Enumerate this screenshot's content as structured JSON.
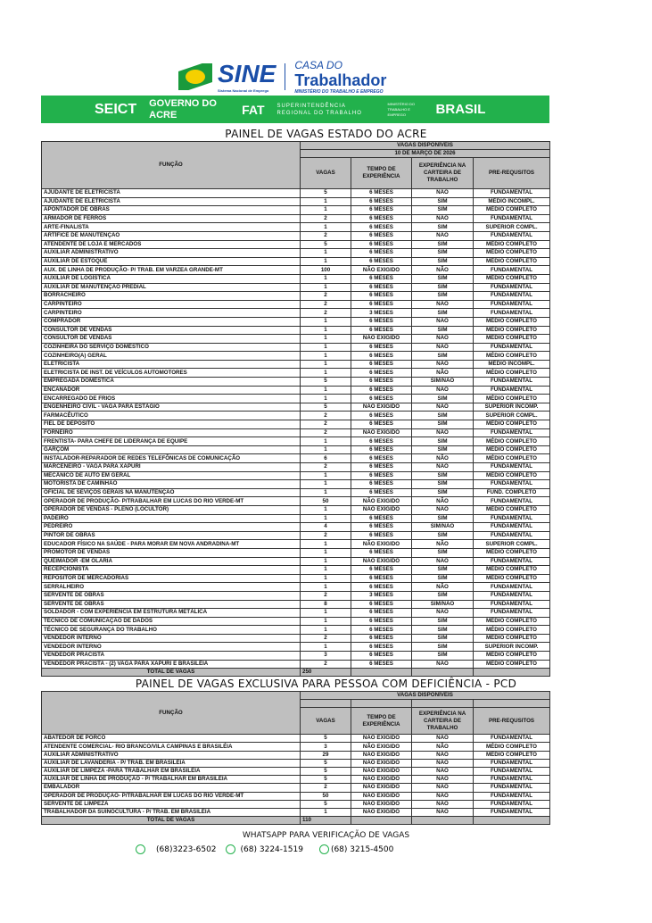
{
  "header": {
    "sine": "SINE",
    "sine_sub": "Sistema Nacional de Emprego",
    "casa": "CASA DO",
    "trabalhador": "Trabalhador",
    "ministerio": "MINISTÉRIO DO TRABALHO E EMPREGO",
    "banner": [
      "SEICT",
      "GOVERNO DO ACRE",
      "FAT",
      "SUPERINTENDÊNCIA REGIONAL DO TRABALHO",
      "MINISTÉRIO DO TRABALHO E EMPREGO",
      "BRASIL"
    ]
  },
  "panel1": {
    "title": "PAINEL DE VAGAS ESTADO DO ACRE",
    "vagas_disponiveis": "VAGAS DISPONÍVEIS",
    "date": "10 DE MARÇO DE 2026",
    "columns": [
      "FUNÇÃO",
      "VAGAS",
      "TEMPO DE EXPERIÊNCIA",
      "EXPERIÊNCIA NA CARTEIRA DE TRABALHO",
      "PRE-REQUSITOS"
    ],
    "rows": [
      [
        "AJUDANTE DE ELETRICISTA",
        "5",
        "6 MESES",
        "NÃO",
        "FUNDAMENTAL"
      ],
      [
        "AJUDANTE DE ELETRICISTA",
        "1",
        "6 MESES",
        "SIM",
        "MÉDIO INCOMPL."
      ],
      [
        "APONTADOR DE OBRAS",
        "1",
        "6 MESES",
        "SIM",
        "MÉDIO COMPLETO"
      ],
      [
        "ARMADOR DE FERROS",
        "2",
        "6 MESES",
        "NÃO",
        "FUNDAMENTAL"
      ],
      [
        "ARTE-FINALISTA",
        "1",
        "6 MESES",
        "SIM",
        "SUPERIOR COMPL."
      ],
      [
        "ARTÍFICE DE MANUTENÇÃO",
        "2",
        "6 MESES",
        "NÃO",
        "FUNDAMENTAL"
      ],
      [
        "ATENDENTE DE LOJA E MERCADOS",
        "5",
        "6 MESES",
        "SIM",
        "MÉDIO COMPLETO"
      ],
      [
        "AUXILIAR ADMINISTRATIVO",
        "1",
        "6 MESES",
        "SIM",
        "MÉDIO COMPLETO"
      ],
      [
        "AUXILIAR DE ESTOQUE",
        "1",
        "6 MESES",
        "SIM",
        "MÉDIO COMPLETO"
      ],
      [
        "AUX. DE LINHA DE PRODUÇÃO- P/ TRAB. EM VARZEA GRANDE-MT",
        "100",
        "NÃO EXIGIDO",
        "NÃO",
        "FUNDAMENTAL"
      ],
      [
        "AUXILIAR DE LOGÍSTICA",
        "1",
        "6 MESES",
        "SIM",
        "MÉDIO COMPLETO"
      ],
      [
        "AUXILIAR DE MANUTENÇÃO PREDIAL",
        "1",
        "6 MESES",
        "SIM",
        "FUNDAMENTAL"
      ],
      [
        "BORRACHEIRO",
        "2",
        "6 MESES",
        "SIM",
        "FUNDAMENTAL"
      ],
      [
        "CARPINTEIRO",
        "2",
        "6 MESES",
        "NÃO",
        "FUNDAMENTAL"
      ],
      [
        "CARPINTEIRO",
        "2",
        "3 MESES",
        "SIM",
        "FUNDAMENTAL"
      ],
      [
        "COMPRADOR",
        "1",
        "6 MESES",
        "NÃO",
        "MÉDIO COMPLETO"
      ],
      [
        "CONSULTOR DE VENDAS",
        "1",
        "6 MESES",
        "SIM",
        "MÉDIO COMPLETO"
      ],
      [
        "CONSULTOR DE VENDAS",
        "1",
        "NÃO EXIGIDO",
        "NÃO",
        "MÉDIO COMPLETO"
      ],
      [
        "COZINHEIRA DO SERVIÇO DOMÉSTICO",
        "1",
        "6 MESES",
        "NÃO",
        "FUNDAMENTAL"
      ],
      [
        "COZINHEIRO(A) GERAL",
        "1",
        "6 MESES",
        "SIM",
        "MÉDIO COMPLETO"
      ],
      [
        "ELETRICISTA",
        "1",
        "6 MESES",
        "NÃO",
        "MÉDIO INCOMPL."
      ],
      [
        "ELETRICISTA DE INST. DE VEÍCULOS AUTOMOTORES",
        "1",
        "6 MESES",
        "NÃO",
        "MÉDIO COMPLETO"
      ],
      [
        "EMPREGADA DOMÉSTICA",
        "5",
        "6 MESES",
        "SIM/NÃO",
        "FUNDAMENTAL"
      ],
      [
        "ENCANADOR",
        "1",
        "6 MESES",
        "NÃO",
        "FUNDAMENTAL"
      ],
      [
        "ENCARREGADO DE FRIOS",
        "1",
        "6 MESES",
        "SIM",
        "MÉDIO COMPLETO"
      ],
      [
        "ENGENHEIRO CIVIL - VAGA PARA ESTÁGIO",
        "5",
        "NÃO EXIGIDO",
        "NÃO",
        "SUPERIOR INCOMP."
      ],
      [
        "FARMACÊUTICO",
        "2",
        "6 MESES",
        "SIM",
        "SUPERIOR COMPL."
      ],
      [
        "FIEL DE DEPÓSITO",
        "2",
        "6 MESES",
        "SIM",
        "MÉDIO COMPLETO"
      ],
      [
        "FORNEIRO",
        "2",
        "NÃO EXIGIDO",
        "NÃO",
        "FUNDAMENTAL"
      ],
      [
        "FRENTISTA- PARA CHEFE DE LIDERANÇA DE EQUIPE",
        "1",
        "6 MESES",
        "SIM",
        "MÉDIO COMPLETO"
      ],
      [
        "GARÇOM",
        "1",
        "6 MESES",
        "SIM",
        "MÉDIO COMPLETO"
      ],
      [
        "INSTALADOR-REPARADOR DE REDES TELEFÔNICAS  DE COMUNICAÇÃO",
        "6",
        "6 MESES",
        "NÃO",
        "MÉDIO COMPLETO"
      ],
      [
        "MARCENEIRO - VAGA PARA XAPURI",
        "2",
        "6 MESES",
        "NÃO",
        "FUNDAMENTAL"
      ],
      [
        "MECÂNICO DE AUTO EM GERAL",
        "1",
        "6 MESES",
        "SIM",
        "MÉDIO COMPLETO"
      ],
      [
        "MOTORISTA DE CAMINHÃO",
        "1",
        "6 MESES",
        "SIM",
        "FUNDAMENTAL"
      ],
      [
        "OFICIAL DE SEVIÇOS GERAIS NA MANUTENÇÃO",
        "1",
        "6 MESES",
        "SIM",
        "FUND. COMPLETO"
      ],
      [
        "OPERADOR DE PRODUÇÃO- P/TRABALHAR EM LUCAS DO RIO VERDE-MT",
        "50",
        "NÃO EXIGIDO",
        "NÃO",
        "FUNDAMENTAL"
      ],
      [
        "OPERADOR DE VENDAS - PLENO (LOCULTOR)",
        "1",
        "NÃO EXIGIDO",
        "NÃO",
        "MÉDIO COMPLETO"
      ],
      [
        "PADEIRO",
        "1",
        "6 MESES",
        "SIM",
        "FUNDAMENTAL"
      ],
      [
        "PEDREIRO",
        "4",
        "6 MESES",
        "SIM/NÃO",
        "FUNDAMENTAL"
      ],
      [
        "PINTOR DE OBRAS",
        "2",
        "6 MESES",
        "SIM",
        "FUNDAMENTAL"
      ],
      [
        "EDUCADOR FÍSICO NA SAÚDE - PARA MORAR EM NOVA ANDRADINA-MT",
        "1",
        "NÃO EXIGIDO",
        "NÃO",
        "SUPERIOR COMPL."
      ],
      [
        "PROMOTOR DE VENDAS",
        "1",
        "6 MESES",
        "SIM",
        "MÉDIO COMPLETO"
      ],
      [
        "QUEIMADOR -EM OLARIA",
        "1",
        "NÃO EXIGIDO",
        "NÃO",
        "FUNDAMENTAL"
      ],
      [
        "RECEPCIONISTA",
        "1",
        "6 MESES",
        "SIM",
        "MÉDIO COMPLETO"
      ],
      [
        "REPOSITOR DE MERCADORIAS",
        "1",
        "6 MESES",
        "SIM",
        "MÉDIO COMPLETO"
      ],
      [
        "SERRALHEIRO",
        "1",
        "6 MESES",
        "NÃO",
        "FUNDAMENTAL"
      ],
      [
        "SERVENTE DE OBRAS",
        "2",
        "3 MESES",
        "SIM",
        "FUNDAMENTAL"
      ],
      [
        "SERVENTE DE OBRAS",
        "8",
        "6 MESES",
        "SIM/NÃO",
        "FUNDAMENTAL"
      ],
      [
        "SOLDADOR -  COM EXPERIÊNCIA EM ESTRUTURA METÁLICA",
        "1",
        "6 MESES",
        "NÃO",
        "FUNDAMENTAL"
      ],
      [
        "TÉCNICO DE COMUNICAÇÃO DE DADOS",
        "1",
        "6 MESES",
        "SIM",
        "MÉDIO COMPLETO"
      ],
      [
        "TÉCNICO DE SEGURANÇA DO TRABALHO",
        "1",
        "6 MESES",
        "SIM",
        "MÉDIO COMPLETO"
      ],
      [
        "VENDEDOR INTERNO",
        "2",
        "6 MESES",
        "SIM",
        "MÉDIO COMPLETO"
      ],
      [
        "VENDEDOR INTERNO",
        "1",
        "6 MESES",
        "SIM",
        "SUPERIOR INCOMP."
      ],
      [
        "VENDEDOR PRACISTA",
        "3",
        "6 MESES",
        "SIM",
        "MÉDIO COMPLETO"
      ],
      [
        "VENDEDOR PRACISTA - (2) VAGA PARA XAPURI E BRASILÉIA",
        "2",
        "6 MESES",
        "NÃO",
        "MÉDIO COMPLETO"
      ]
    ],
    "total_label": "TOTAL DE VAGAS",
    "total": "250"
  },
  "panel2": {
    "title": "PAINEL DE VAGAS EXCLUSIVA PARA PESSOA COM DEFICIÊNCIA - PCD",
    "vagas_disponiveis": "VAGAS DISPONÍVEIS",
    "columns": [
      "FUNÇÃO",
      "VAGAS",
      "TEMPO DE EXPERIÊNCIA",
      "EXPERIÊNCIA NA CARTEIRA DE TRABALHO",
      "PRE-REQUSITOS"
    ],
    "rows": [
      [
        "ABATEDOR DE PORCO",
        "5",
        "NÃO EXIGIDO",
        "NÃO",
        "FUNDAMENTAL"
      ],
      [
        "ATENDENTE COMERCIAL- RIO BRANCO/VILA CAMPINAS E BRASILÉIA",
        "3",
        "NÃO EXIGIDO",
        "NÃO",
        "MÉDIO COMPLETO"
      ],
      [
        "AUXILIAR ADMINISTRATIVO",
        "29",
        "NÃO EXIGIDO",
        "NÃO",
        "MÉDIO COMPLETO"
      ],
      [
        "AUXILIAR DE LAVANDERIA - P/ TRAB. EM BRASILÉIA",
        "5",
        "NÃO EXIGIDO",
        "NÃO",
        "FUNDAMENTAL"
      ],
      [
        "AUXILIAR DE LIMPEZA -PARA TRABALHAR EM BRASILÉIA",
        "5",
        "NÃO EXIGIDO",
        "NÃO",
        "FUNDAMENTAL"
      ],
      [
        "AUXILIAR DE LINHA DE PRODUÇÃO - P/ TRABALHAR EM BRASILÉIA",
        "5",
        "NÃO EXIGIDO",
        "NÃO",
        "FUNDAMENTAL"
      ],
      [
        "EMBALADOR",
        "2",
        "NÃO EXIGIDO",
        "NÃO",
        "FUNDAMENTAL"
      ],
      [
        "OPERADOR DE PRODUÇÃO- P/TRABALHAR EM LUCAS DO RIO VERDE-MT",
        "50",
        "NÃO EXIGIDO",
        "NÃO",
        "FUNDAMENTAL"
      ],
      [
        "SERVENTE DE LIMPEZA",
        "5",
        "NÃO EXIGIDO",
        "NÃO",
        "FUNDAMENTAL"
      ],
      [
        "TRABALHADOR DA SUINOCULTURA - P/ TRAB. EM BRASILÉIA",
        "1",
        "NÃO EXIGIDO",
        "NÃO",
        "FUNDAMENTAL"
      ]
    ],
    "total_label": "TOTAL DE VAGAS",
    "total": "110"
  },
  "footer": {
    "whatsapp_title": "WHATSAPP PARA VERIFICAÇÃO DE VAGAS",
    "phones": [
      "(68)3223-6502",
      "(68) 3224-1519",
      "(68) 3215-4500"
    ],
    "icon": "whatsapp-icon",
    "accent": "#22b14c"
  }
}
